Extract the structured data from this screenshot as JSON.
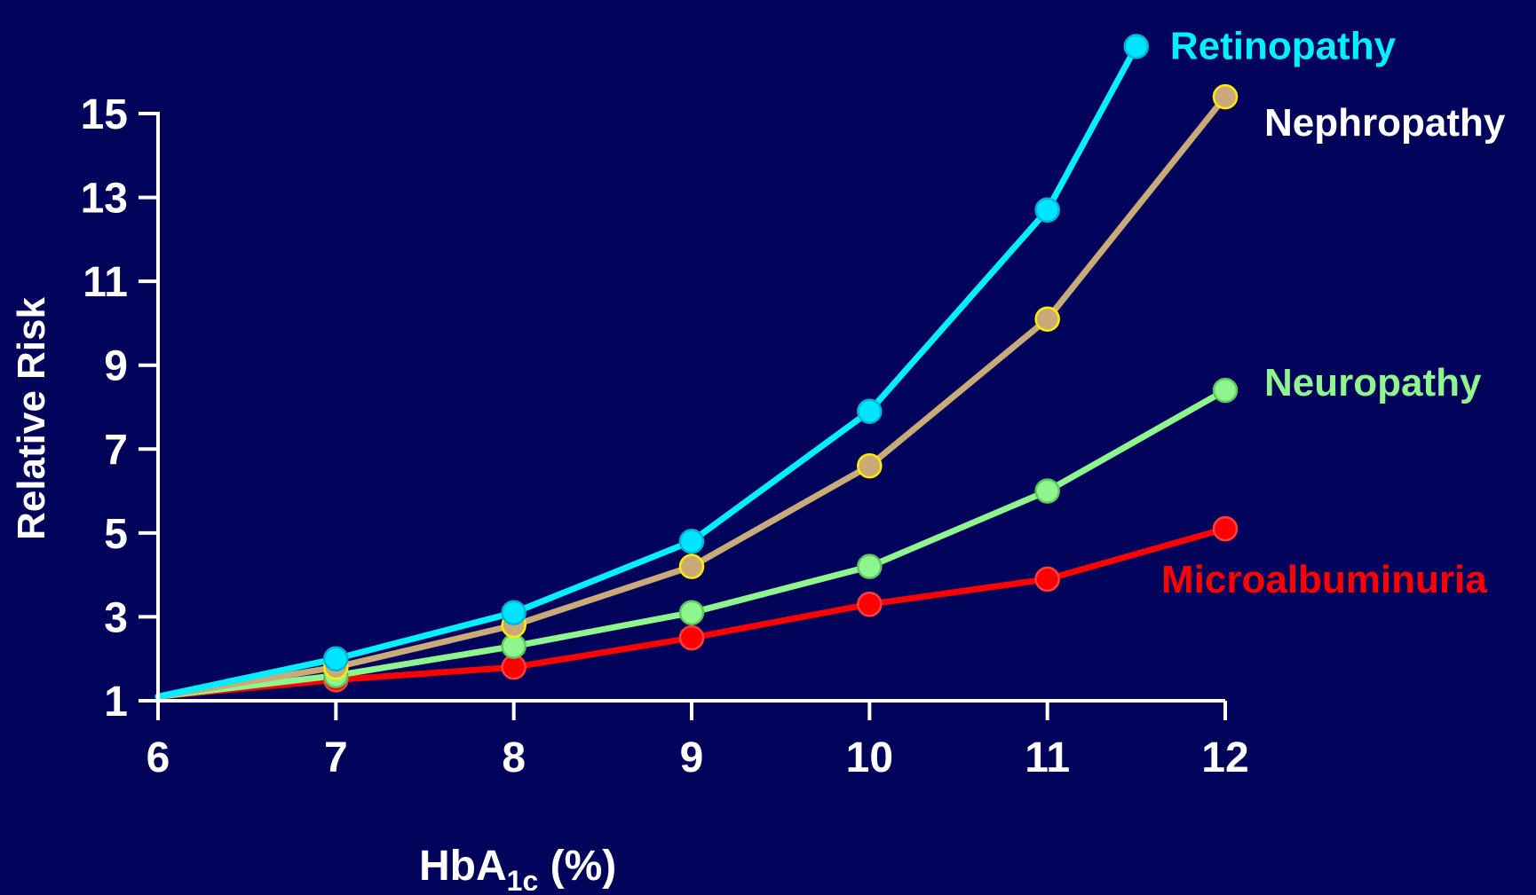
{
  "colors": {
    "background": "#02035a",
    "axis": "#ffffff",
    "text": "#ffffff"
  },
  "chart_data": {
    "type": "line",
    "title": "",
    "xlabel": {
      "main": "HbA",
      "subscript": "1c",
      "suffix": " (%)"
    },
    "ylabel": "Relative Risk",
    "xlim": [
      6,
      12
    ],
    "ylim": [
      1,
      15
    ],
    "xticks": [
      6,
      7,
      8,
      9,
      10,
      11,
      12
    ],
    "yticks": [
      1,
      3,
      5,
      7,
      9,
      11,
      13,
      15
    ],
    "grid": false,
    "legend": "direct labels at line ends",
    "series": [
      {
        "name": "Retinopathy",
        "color": "#00f0ff",
        "marker_fill": "#00e5ff",
        "marker_edge": "#00b4d8",
        "x": [
          6,
          7,
          8,
          9,
          10,
          11,
          11.5
        ],
        "y": [
          1.1,
          2.0,
          3.1,
          4.8,
          7.9,
          12.7,
          16.6
        ]
      },
      {
        "name": "Nephropathy",
        "color": "#c9aa78",
        "marker_fill": "#c9aa78",
        "marker_edge": "#ffee00",
        "x": [
          6,
          7,
          8,
          9,
          10,
          11,
          12
        ],
        "y": [
          1.1,
          1.8,
          2.8,
          4.2,
          6.6,
          10.1,
          15.4
        ]
      },
      {
        "name": "Neuropathy",
        "color": "#8ff58f",
        "marker_fill": "#8ff58f",
        "marker_edge": "#5cc95c",
        "x": [
          6,
          7,
          8,
          9,
          10,
          11,
          12
        ],
        "y": [
          1.1,
          1.6,
          2.3,
          3.1,
          4.2,
          6.0,
          8.4
        ]
      },
      {
        "name": "Microalbuminuria",
        "color": "#ff0000",
        "marker_fill": "#ff0000",
        "marker_edge": "#ff4040",
        "x": [
          6,
          7,
          8,
          9,
          10,
          11,
          12
        ],
        "y": [
          1.1,
          1.5,
          1.8,
          2.5,
          3.3,
          3.9,
          5.1
        ]
      }
    ]
  }
}
